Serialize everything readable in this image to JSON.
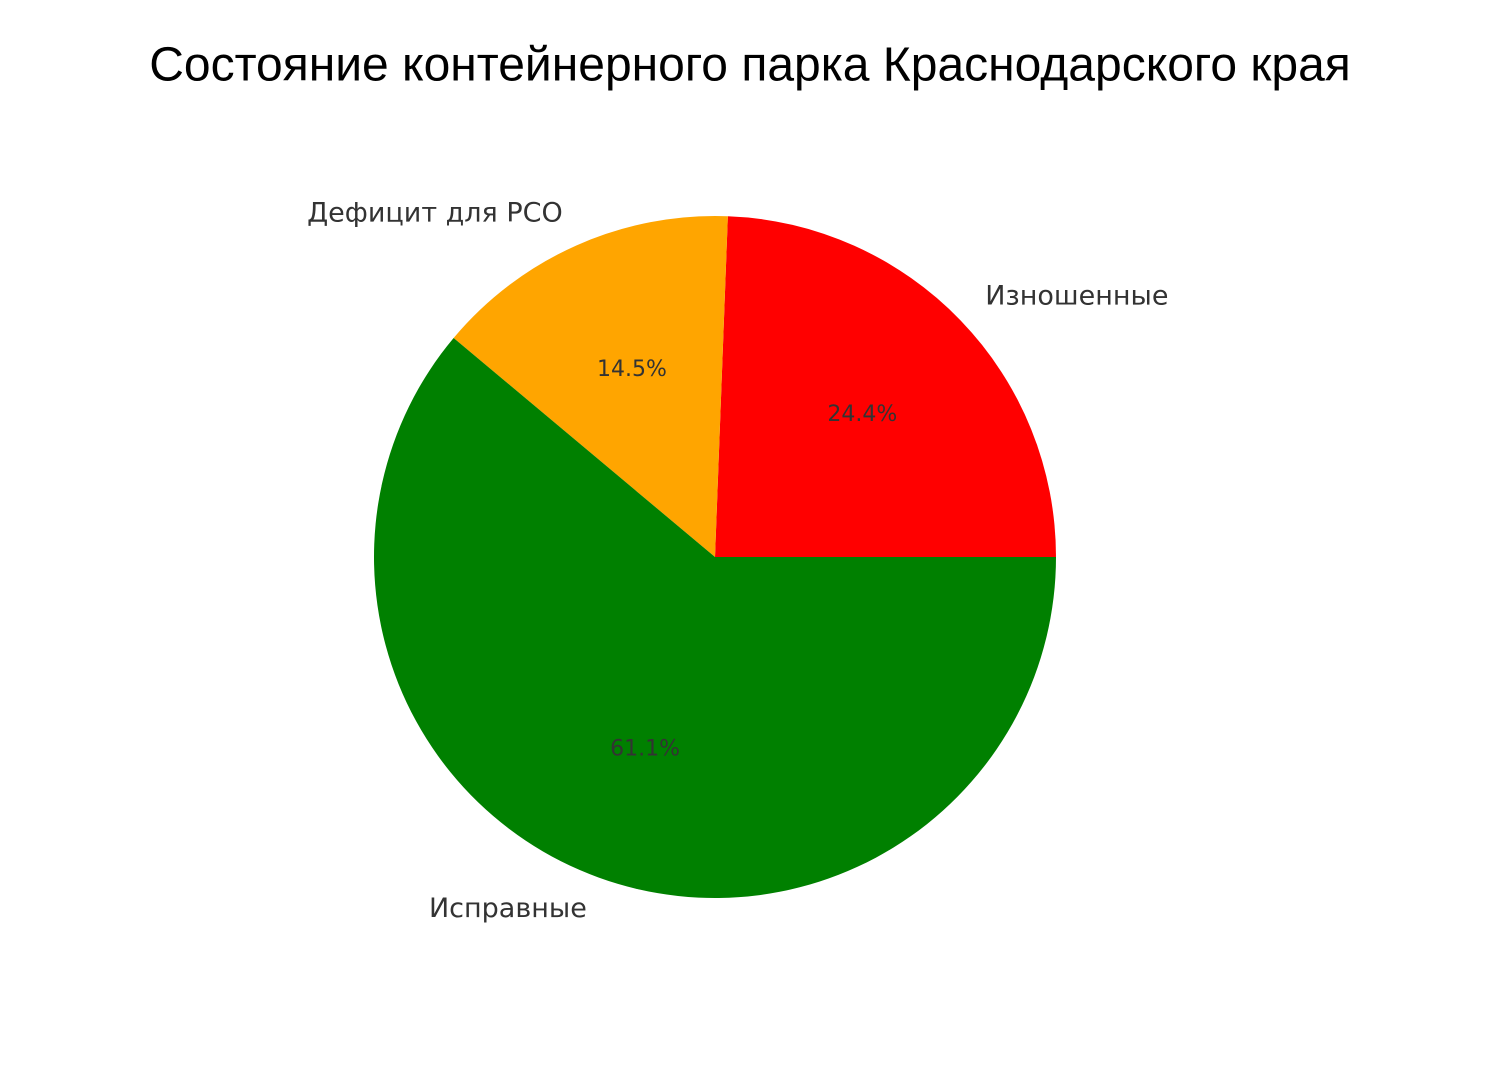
{
  "chart_data": {
    "type": "pie",
    "title": "Состояние контейнерного парка Краснодарского края",
    "categories": [
      "Изношенные",
      "Дефицит для РСО",
      "Исправные"
    ],
    "values": [
      24.4,
      14.5,
      61.1
    ],
    "value_labels": [
      "24.4%",
      "14.5%",
      "61.1%"
    ],
    "colors": [
      "#ff0000",
      "#ffa500",
      "#008000"
    ]
  }
}
